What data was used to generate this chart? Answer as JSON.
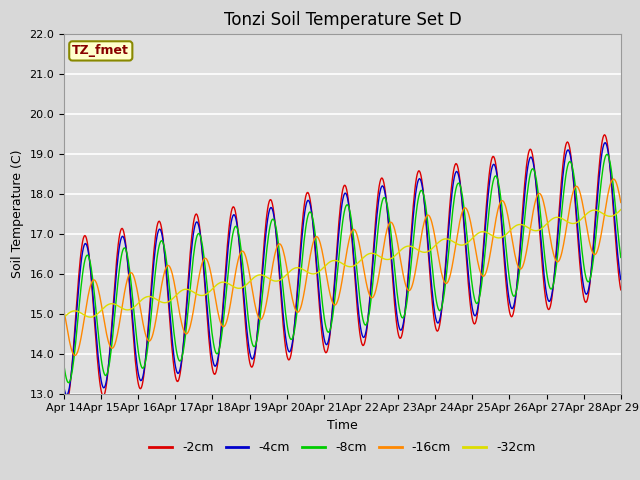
{
  "title": "Tonzi Soil Temperature Set D",
  "xlabel": "Time",
  "ylabel": "Soil Temperature (C)",
  "xlim": [
    0,
    15
  ],
  "ylim": [
    13.0,
    22.0
  ],
  "yticks": [
    13.0,
    14.0,
    15.0,
    16.0,
    17.0,
    18.0,
    19.0,
    20.0,
    21.0,
    22.0
  ],
  "xtick_labels": [
    "Apr 14",
    "Apr 15",
    "Apr 16",
    "Apr 17",
    "Apr 18",
    "Apr 19",
    "Apr 20",
    "Apr 21",
    "Apr 22",
    "Apr 23",
    "Apr 24",
    "Apr 25",
    "Apr 26",
    "Apr 27",
    "Apr 28",
    "Apr 29"
  ],
  "series_colors": [
    "#dd0000",
    "#0000cc",
    "#00cc00",
    "#ff8800",
    "#dddd00"
  ],
  "series_labels": [
    "-2cm",
    "-4cm",
    "-8cm",
    "-16cm",
    "-32cm"
  ],
  "legend_label": "TZ_fmet",
  "legend_box_facecolor": "#ffffcc",
  "legend_box_edgecolor": "#888800",
  "fig_facecolor": "#d8d8d8",
  "plot_facecolor": "#e0e0e0",
  "grid_color": "#ffffff",
  "title_fontsize": 12,
  "axis_label_fontsize": 9,
  "tick_fontsize": 8,
  "legend_fontsize": 9
}
